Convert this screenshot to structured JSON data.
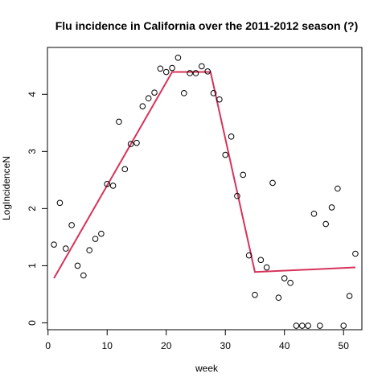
{
  "chart_data": {
    "type": "scatter",
    "title": "Flu incidence in California over the 2011-2012 season (?)",
    "xlabel": "week",
    "ylabel": "LogIncidenceN",
    "xlim": [
      -0.1,
      53.1
    ],
    "ylim": [
      -0.12,
      4.82
    ],
    "xticks": [
      0,
      10,
      20,
      30,
      40,
      50
    ],
    "yticks": [
      0,
      1,
      2,
      3,
      4
    ],
    "grid": false,
    "legend": "none",
    "point_color": "#000000",
    "line_color": "#d6325a",
    "series": [
      {
        "kind": "points",
        "x": [
          1,
          2,
          3,
          4,
          5,
          6,
          7,
          8,
          9,
          10,
          11,
          12,
          13,
          14,
          15,
          16,
          17,
          18,
          19,
          20,
          21,
          22,
          23,
          24,
          25,
          26,
          27,
          28,
          29,
          30,
          31,
          32,
          33,
          34,
          35,
          36,
          37,
          38,
          39,
          40,
          41,
          42,
          43,
          44,
          45,
          46,
          47,
          48,
          49,
          50,
          51,
          52
        ],
        "y": [
          1.37,
          2.1,
          1.3,
          1.71,
          1.0,
          0.83,
          1.27,
          1.47,
          1.56,
          2.43,
          2.4,
          3.52,
          2.69,
          3.13,
          3.15,
          3.79,
          3.93,
          4.03,
          4.45,
          4.39,
          4.46,
          4.64,
          4.02,
          4.37,
          4.37,
          4.49,
          4.4,
          4.02,
          3.91,
          2.94,
          3.26,
          2.22,
          2.59,
          1.18,
          0.49,
          1.1,
          0.97,
          2.45,
          0.44,
          0.78,
          0.7,
          -0.05,
          -0.05,
          -0.05,
          1.91,
          -0.05,
          1.73,
          2.02,
          2.35,
          -0.05,
          0.47,
          1.21
        ]
      },
      {
        "kind": "line",
        "x": [
          1,
          21,
          27.5,
          35,
          52
        ],
        "y": [
          0.78,
          4.39,
          4.39,
          0.89,
          0.97
        ]
      }
    ]
  }
}
